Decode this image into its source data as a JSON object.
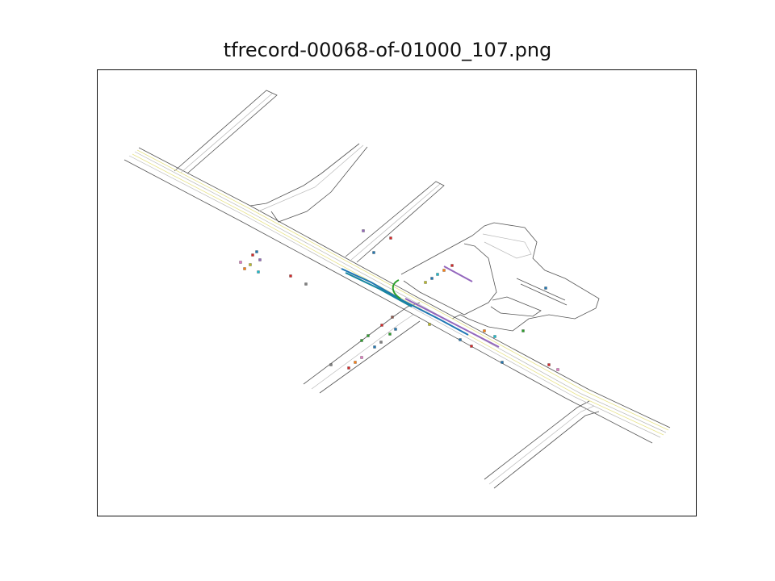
{
  "figure": {
    "title": "tfrecord-00068-of-01000_107.png"
  },
  "colors": {
    "road_edge": "#555555",
    "lane_center": "#b8b8b8",
    "lane_yellow": "#e8e48a",
    "traj_blue": "#1f77b4",
    "traj_teal": "#17869e",
    "traj_green": "#2ca02c",
    "traj_purple": "#9467bd",
    "agent_colors": [
      "#1f77b4",
      "#ff7f0e",
      "#2ca02c",
      "#d62728",
      "#9467bd",
      "#8c564b",
      "#e377c2",
      "#7f7f7f",
      "#bcbd22",
      "#17becf"
    ]
  }
}
